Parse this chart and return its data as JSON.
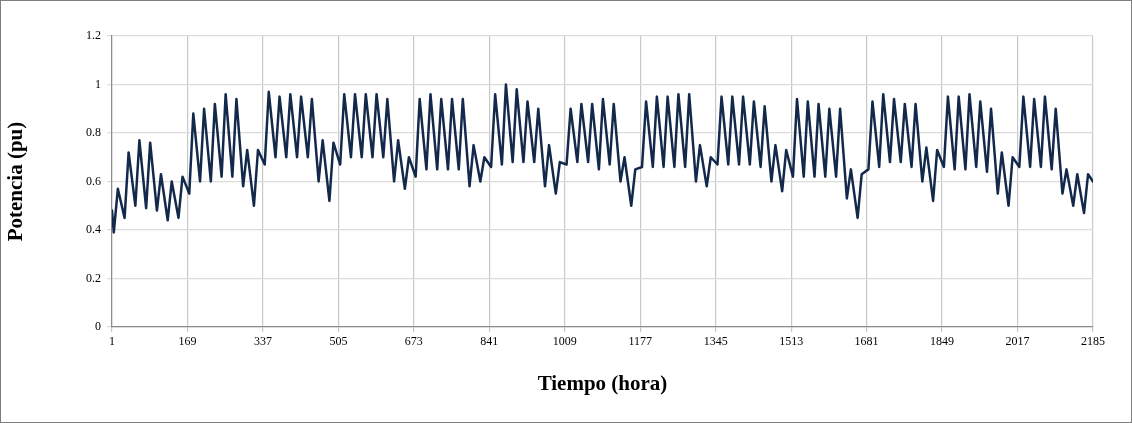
{
  "chart_data": {
    "type": "line",
    "xlabel": "Tiempo (hora)",
    "ylabel": "Potencia (pu)",
    "xlim": [
      1,
      2185
    ],
    "xticks": [
      1,
      169,
      337,
      505,
      673,
      841,
      1009,
      1177,
      1345,
      1513,
      1681,
      1849,
      2017,
      2185
    ],
    "ylim": [
      0,
      1.2
    ],
    "yticks": [
      0,
      0.2,
      0.4,
      0.6,
      0.8,
      1,
      1.2
    ],
    "grid": true,
    "legend": false,
    "marker": "none",
    "line_style": "solid",
    "series": [
      {
        "color": "#13294b",
        "x": [
          1,
          5,
          14,
          29,
          38,
          53,
          62,
          77,
          86,
          101,
          110,
          125,
          134,
          149,
          158,
          173,
          182,
          197,
          206,
          221,
          230,
          245,
          254,
          269,
          278,
          293,
          302,
          317,
          326,
          341,
          350,
          365,
          374,
          389,
          398,
          413,
          422,
          437,
          446,
          461,
          470,
          485,
          494,
          509,
          518,
          533,
          542,
          557,
          566,
          581,
          590,
          605,
          614,
          629,
          638,
          653,
          662,
          677,
          686,
          701,
          710,
          725,
          734,
          749,
          758,
          773,
          782,
          797,
          806,
          821,
          830,
          845,
          854,
          869,
          878,
          893,
          902,
          917,
          926,
          941,
          950,
          965,
          974,
          989,
          998,
          1013,
          1022,
          1037,
          1046,
          1061,
          1070,
          1085,
          1094,
          1109,
          1118,
          1133,
          1142,
          1157,
          1166,
          1181,
          1190,
          1205,
          1214,
          1229,
          1238,
          1253,
          1262,
          1277,
          1286,
          1301,
          1310,
          1325,
          1334,
          1349,
          1358,
          1373,
          1382,
          1397,
          1406,
          1421,
          1430,
          1445,
          1454,
          1469,
          1478,
          1493,
          1502,
          1517,
          1526,
          1541,
          1550,
          1565,
          1574,
          1589,
          1598,
          1613,
          1622,
          1637,
          1646,
          1661,
          1670,
          1685,
          1694,
          1709,
          1718,
          1733,
          1742,
          1757,
          1766,
          1781,
          1790,
          1805,
          1814,
          1829,
          1838,
          1853,
          1862,
          1877,
          1886,
          1901,
          1910,
          1925,
          1934,
          1949,
          1958,
          1973,
          1982,
          1997,
          2006,
          2021,
          2030,
          2045,
          2054,
          2069,
          2078,
          2093,
          2102,
          2117,
          2126,
          2141,
          2150,
          2165,
          2174,
          2185
        ],
        "values": [
          0.48,
          0.39,
          0.57,
          0.45,
          0.72,
          0.5,
          0.77,
          0.49,
          0.76,
          0.48,
          0.63,
          0.44,
          0.6,
          0.45,
          0.62,
          0.55,
          0.88,
          0.6,
          0.9,
          0.6,
          0.92,
          0.62,
          0.96,
          0.62,
          0.94,
          0.58,
          0.73,
          0.5,
          0.73,
          0.67,
          0.97,
          0.7,
          0.95,
          0.7,
          0.96,
          0.7,
          0.95,
          0.7,
          0.94,
          0.6,
          0.77,
          0.52,
          0.76,
          0.67,
          0.96,
          0.7,
          0.96,
          0.7,
          0.96,
          0.7,
          0.96,
          0.7,
          0.94,
          0.6,
          0.77,
          0.57,
          0.7,
          0.62,
          0.94,
          0.65,
          0.96,
          0.65,
          0.94,
          0.65,
          0.94,
          0.65,
          0.94,
          0.58,
          0.75,
          0.6,
          0.7,
          0.66,
          0.96,
          0.67,
          1.0,
          0.68,
          0.98,
          0.68,
          0.93,
          0.68,
          0.9,
          0.58,
          0.75,
          0.55,
          0.68,
          0.67,
          0.9,
          0.68,
          0.92,
          0.68,
          0.92,
          0.65,
          0.94,
          0.67,
          0.92,
          0.6,
          0.7,
          0.5,
          0.65,
          0.66,
          0.93,
          0.66,
          0.95,
          0.66,
          0.95,
          0.66,
          0.96,
          0.66,
          0.96,
          0.6,
          0.75,
          0.58,
          0.7,
          0.67,
          0.95,
          0.67,
          0.95,
          0.67,
          0.95,
          0.67,
          0.93,
          0.66,
          0.91,
          0.6,
          0.75,
          0.56,
          0.73,
          0.62,
          0.94,
          0.62,
          0.93,
          0.62,
          0.92,
          0.62,
          0.9,
          0.62,
          0.9,
          0.53,
          0.65,
          0.45,
          0.63,
          0.65,
          0.93,
          0.66,
          0.96,
          0.68,
          0.94,
          0.68,
          0.92,
          0.66,
          0.92,
          0.6,
          0.74,
          0.52,
          0.73,
          0.66,
          0.95,
          0.65,
          0.95,
          0.65,
          0.96,
          0.66,
          0.93,
          0.64,
          0.9,
          0.55,
          0.72,
          0.5,
          0.7,
          0.66,
          0.95,
          0.66,
          0.94,
          0.66,
          0.95,
          0.65,
          0.9,
          0.55,
          0.65,
          0.5,
          0.63,
          0.47,
          0.63,
          0.6
        ]
      }
    ]
  }
}
